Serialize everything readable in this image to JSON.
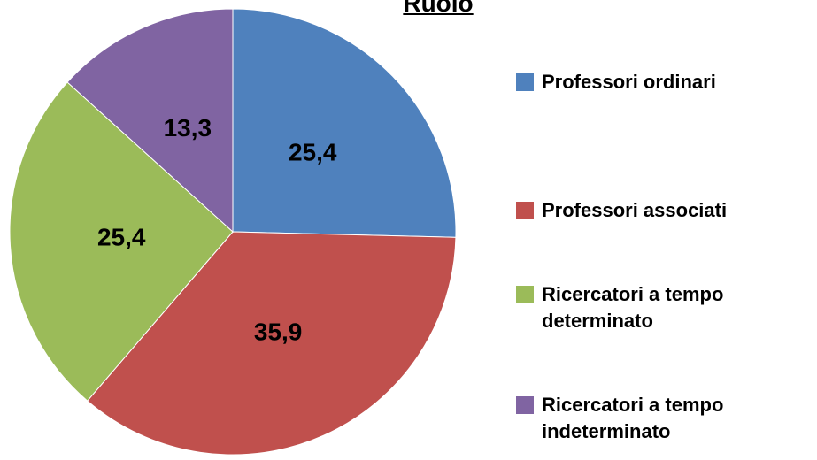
{
  "chart_data": {
    "type": "pie",
    "title": "Ruolo",
    "categories": [
      "Professori ordinari",
      "Professori associati",
      "Ricercatori a tempo determinato",
      "Ricercatori a tempo indeterminato"
    ],
    "values": [
      25.4,
      35.9,
      25.4,
      13.3
    ],
    "value_labels": [
      "25,4",
      "35,9",
      "25,4",
      "13,3"
    ],
    "colors": [
      "#4f81bd",
      "#c0504d",
      "#9bbb59",
      "#8064a2"
    ],
    "legend": "right"
  }
}
